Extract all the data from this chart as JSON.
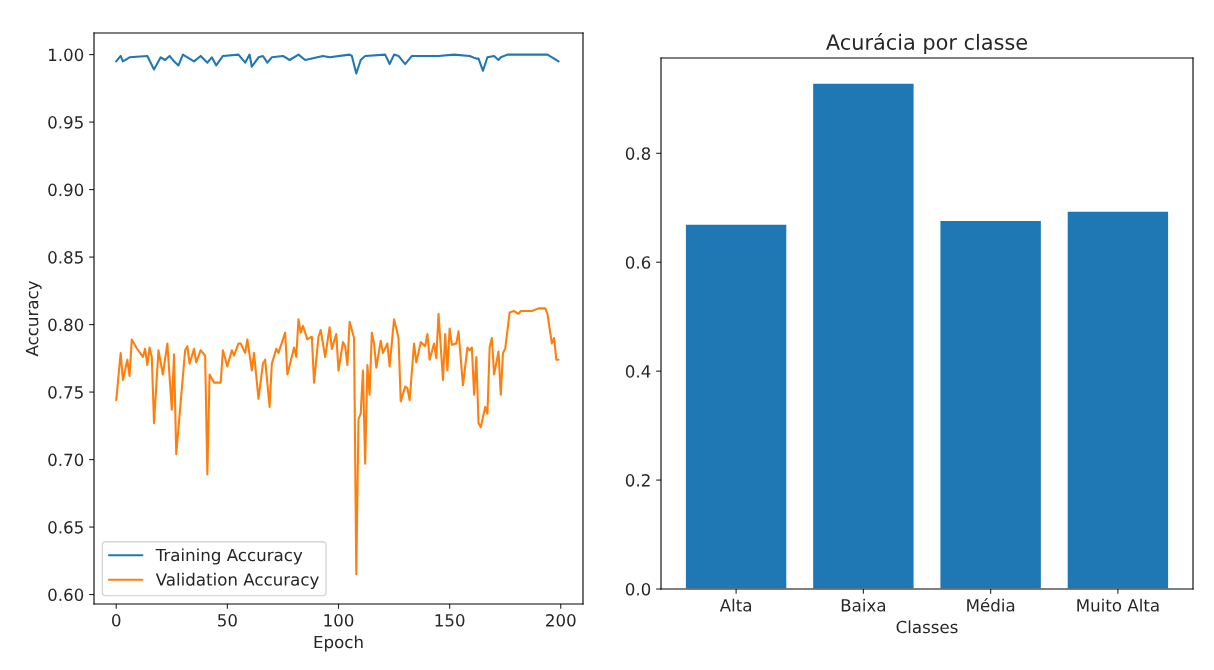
{
  "chart_data": [
    {
      "type": "line",
      "xlabel": "Epoch",
      "ylabel": "Accuracy",
      "xlim": [
        -10,
        210
      ],
      "xticks": [
        0,
        50,
        100,
        150,
        200
      ],
      "ylim": [
        0.593,
        1.016
      ],
      "yticks": [
        {
          "value": 0.6,
          "label": "0.60"
        },
        {
          "value": 0.65,
          "label": "0.65"
        },
        {
          "value": 0.7,
          "label": "0.70"
        },
        {
          "value": 0.75,
          "label": "0.75"
        },
        {
          "value": 0.8,
          "label": "0.80"
        },
        {
          "value": 0.85,
          "label": "0.85"
        },
        {
          "value": 0.9,
          "label": "0.90"
        },
        {
          "value": 0.95,
          "label": "0.95"
        },
        {
          "value": 1.0,
          "label": "1.00"
        }
      ],
      "grid": false,
      "legend": "bottom left",
      "series": [
        {
          "name": "Training Accuracy",
          "color": "#1f77b4",
          "x": [
            0,
            2,
            3,
            6,
            14,
            17,
            20,
            22,
            24,
            26,
            28,
            30,
            35,
            38,
            41,
            43,
            45,
            48,
            55,
            58,
            60,
            61,
            64,
            66,
            68,
            70,
            75,
            78,
            82,
            85,
            93,
            96,
            105,
            106,
            108,
            110,
            112,
            121,
            123,
            125,
            127,
            130,
            133,
            141,
            145,
            152,
            159,
            162,
            163,
            165,
            167,
            170,
            172,
            173,
            176,
            194,
            197,
            199
          ],
          "values": [
            0.995,
            0.999,
            0.995,
            0.998,
            0.999,
            0.989,
            0.998,
            0.996,
            0.999,
            0.995,
            0.992,
            1.0,
            0.995,
            0.999,
            0.994,
            0.998,
            0.992,
            0.999,
            1.0,
            0.994,
            1.0,
            0.991,
            0.998,
            0.999,
            0.994,
            0.998,
            0.999,
            0.996,
            1.0,
            0.996,
            0.999,
            0.998,
            1.0,
            0.999,
            0.986,
            0.996,
            0.999,
            1.0,
            0.993,
            1.0,
            0.999,
            0.993,
            0.999,
            0.999,
            0.999,
            1.0,
            0.999,
            0.997,
            0.997,
            0.988,
            0.998,
            0.999,
            0.996,
            0.998,
            1.0,
            1.0,
            0.997,
            0.995
          ]
        },
        {
          "name": "Validation Accuracy",
          "color": "#ff7f0e",
          "x": [
            0,
            2,
            3,
            5,
            6,
            7,
            9,
            12,
            13,
            14,
            15,
            16,
            17,
            19,
            21,
            23,
            25,
            26,
            27,
            31,
            32,
            33,
            35,
            36,
            38,
            40,
            41,
            42,
            44,
            47,
            48,
            50,
            52,
            53,
            55,
            56,
            58,
            59,
            61,
            62,
            64,
            66,
            67,
            69,
            70,
            72,
            73,
            76,
            77,
            80,
            81,
            82,
            83,
            84,
            86,
            88,
            89,
            91,
            92,
            94,
            96,
            97,
            99,
            100,
            102,
            103,
            104,
            105,
            107,
            108,
            109,
            110,
            111,
            112,
            113,
            114,
            115,
            116,
            117,
            119,
            120,
            122,
            123,
            125,
            127,
            128,
            130,
            131,
            132,
            134,
            135,
            137,
            139,
            140,
            141,
            143,
            144,
            145,
            147,
            148,
            149,
            150,
            151,
            153,
            154,
            156,
            158,
            159,
            160,
            161,
            162,
            163,
            164,
            166,
            167,
            168,
            169,
            170,
            172,
            173,
            174,
            175,
            177,
            179,
            181,
            182,
            187,
            190,
            193,
            194,
            196,
            197,
            198,
            199
          ],
          "values": [
            0.744,
            0.779,
            0.759,
            0.774,
            0.762,
            0.789,
            0.783,
            0.776,
            0.782,
            0.77,
            0.783,
            0.776,
            0.727,
            0.781,
            0.763,
            0.786,
            0.737,
            0.778,
            0.704,
            0.781,
            0.784,
            0.771,
            0.782,
            0.772,
            0.781,
            0.777,
            0.689,
            0.763,
            0.757,
            0.757,
            0.781,
            0.769,
            0.781,
            0.777,
            0.786,
            0.786,
            0.779,
            0.789,
            0.766,
            0.779,
            0.745,
            0.771,
            0.774,
            0.739,
            0.771,
            0.782,
            0.779,
            0.794,
            0.763,
            0.783,
            0.776,
            0.804,
            0.794,
            0.799,
            0.789,
            0.791,
            0.757,
            0.791,
            0.796,
            0.776,
            0.798,
            0.782,
            0.793,
            0.766,
            0.787,
            0.784,
            0.77,
            0.802,
            0.79,
            0.615,
            0.73,
            0.734,
            0.766,
            0.697,
            0.77,
            0.748,
            0.794,
            0.786,
            0.768,
            0.788,
            0.779,
            0.786,
            0.769,
            0.804,
            0.79,
            0.743,
            0.754,
            0.753,
            0.744,
            0.786,
            0.772,
            0.787,
            0.784,
            0.793,
            0.774,
            0.786,
            0.775,
            0.808,
            0.759,
            0.793,
            0.766,
            0.797,
            0.785,
            0.786,
            0.795,
            0.755,
            0.783,
            0.781,
            0.783,
            0.748,
            0.776,
            0.727,
            0.724,
            0.739,
            0.734,
            0.783,
            0.79,
            0.763,
            0.78,
            0.748,
            0.779,
            0.782,
            0.809,
            0.81,
            0.808,
            0.81,
            0.81,
            0.812,
            0.812,
            0.808,
            0.786,
            0.79,
            0.774,
            0.774
          ]
        }
      ]
    },
    {
      "type": "bar",
      "title": "Acurácia por classe",
      "xlabel": "Classes",
      "categories": [
        "Alta",
        "Baixa",
        "Média",
        "Muito Alta"
      ],
      "values": [
        0.67,
        0.929,
        0.677,
        0.694
      ],
      "color": "#1f77b4",
      "ylim": [
        0,
        0.975
      ],
      "yticks": [
        {
          "value": 0.0,
          "label": "0.0"
        },
        {
          "value": 0.2,
          "label": "0.2"
        },
        {
          "value": 0.4,
          "label": "0.4"
        },
        {
          "value": 0.6,
          "label": "0.6"
        },
        {
          "value": 0.8,
          "label": "0.8"
        }
      ],
      "grid": false
    }
  ]
}
